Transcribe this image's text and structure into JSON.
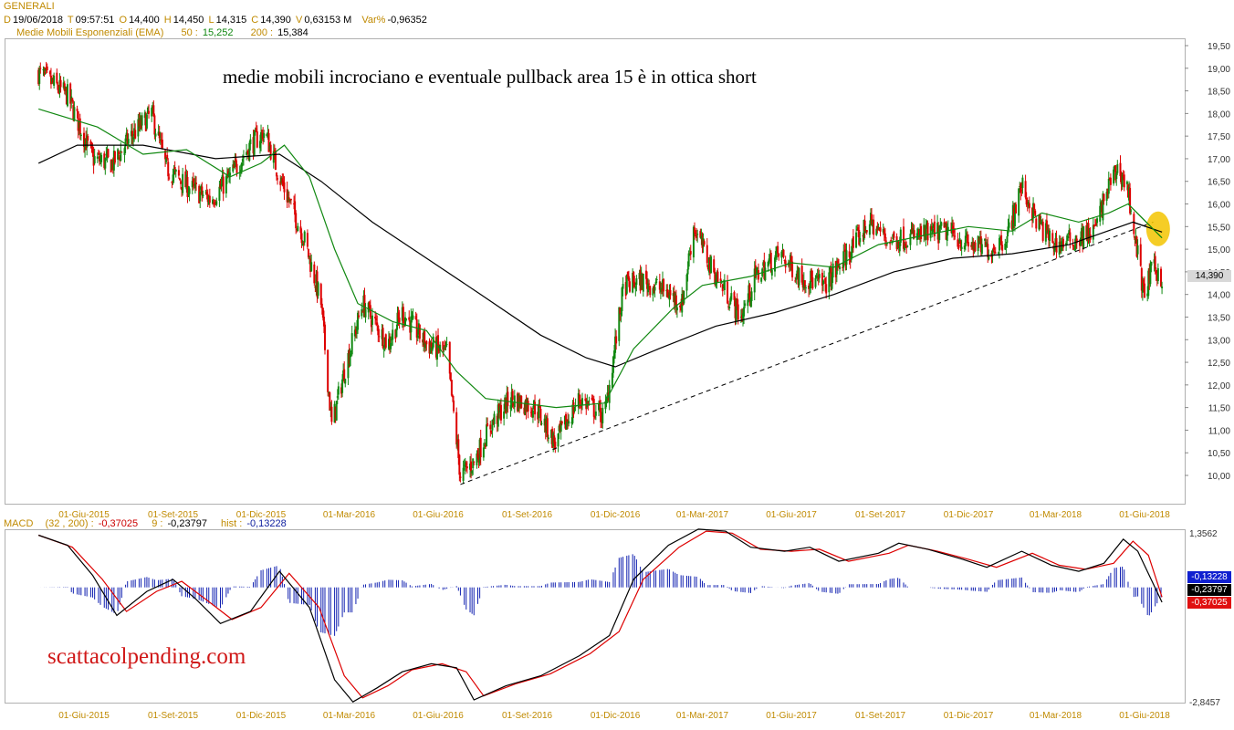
{
  "header": {
    "symbol": "GENERALI",
    "date_label": "D",
    "date": "19/06/2018",
    "time_label": "T",
    "time": "09:57:51",
    "open_label": "O",
    "open": "14,400",
    "high_label": "H",
    "high": "14,450",
    "low_label": "L",
    "low": "14,315",
    "close_label": "C",
    "close": "14,390",
    "volume_label": "V",
    "volume": "0,63153 M",
    "var_label": "Var%",
    "var": "-0,96352",
    "ema_label": "Medie Mobili Esponenziali (EMA)",
    "ema50_label": "50 :",
    "ema50": "15,252",
    "ema200_label": "200 :",
    "ema200": "15,384"
  },
  "annotation": "medie mobili incrociano e eventuale pullback area 15 è in ottica short",
  "watermark": "scattacolpending.com",
  "last_price_box": "14,390",
  "macd_header": {
    "label": "MACD",
    "params": "(32 , 200) :",
    "macd": "-0,37025",
    "signal_label": "9 :",
    "signal": "-0,23797",
    "hist_label": "hist :",
    "hist": "-0,13228"
  },
  "macd_boxes": {
    "hist": "-0,13228",
    "signal": "-0,23797",
    "macd": "-0,37025"
  },
  "colors": {
    "up": "#118811",
    "down": "#dd0000",
    "ema50": "#118811",
    "ema200": "#000000",
    "macd_hist": "#1020b0",
    "macd_line": "#000000",
    "signal_line": "#dd0000",
    "highlight": "#f3c400",
    "axis_date": "#c08a00"
  },
  "chart_data": [
    {
      "type": "candlestick",
      "title": "GENERALI",
      "x": [
        "01-Giu-2015",
        "01-Set-2015",
        "01-Dic-2015",
        "01-Mar-2016",
        "01-Giu-2016",
        "01-Set-2016",
        "01-Dic-2016",
        "01-Mar-2017",
        "01-Giu-2017",
        "01-Set-2017",
        "01-Dic-2017",
        "01-Mar-2018",
        "01-Giu-2018"
      ],
      "y_ticks": [
        "19,50",
        "19,00",
        "18,50",
        "18,00",
        "17,50",
        "17,00",
        "16,50",
        "16,00",
        "15,50",
        "15,00",
        "14,50",
        "14,00",
        "13,50",
        "13,00",
        "12,50",
        "12,00",
        "11,50",
        "11,00",
        "10,50",
        "10,00"
      ],
      "ylim": [
        9.5,
        19.75
      ],
      "price_path": [
        [
          "2015-04-15",
          18.9
        ],
        [
          "2015-05-15",
          18.4
        ],
        [
          "2015-06-10",
          17.0
        ],
        [
          "2015-07-01",
          16.9
        ],
        [
          "2015-07-20",
          17.5
        ],
        [
          "2015-08-10",
          18.0
        ],
        [
          "2015-08-25",
          16.8
        ],
        [
          "2015-09-15",
          16.4
        ],
        [
          "2015-10-10",
          16.1
        ],
        [
          "2015-10-30",
          16.6
        ],
        [
          "2015-11-20",
          17.3
        ],
        [
          "2015-12-05",
          17.6
        ],
        [
          "2015-12-20",
          16.6
        ],
        [
          "2016-01-15",
          15.2
        ],
        [
          "2016-02-01",
          13.8
        ],
        [
          "2016-02-12",
          11.1
        ],
        [
          "2016-02-25",
          12.3
        ],
        [
          "2016-03-15",
          13.8
        ],
        [
          "2016-04-10",
          12.9
        ],
        [
          "2016-04-25",
          13.6
        ],
        [
          "2016-05-20",
          12.9
        ],
        [
          "2016-06-10",
          12.7
        ],
        [
          "2016-06-24",
          10.0
        ],
        [
          "2016-07-08",
          10.3
        ],
        [
          "2016-07-25",
          11.1
        ],
        [
          "2016-08-15",
          11.7
        ],
        [
          "2016-09-10",
          11.5
        ],
        [
          "2016-09-30",
          10.7
        ],
        [
          "2016-10-25",
          11.7
        ],
        [
          "2016-11-20",
          11.3
        ],
        [
          "2016-12-10",
          14.2
        ],
        [
          "2016-12-30",
          14.3
        ],
        [
          "2017-01-20",
          14.1
        ],
        [
          "2017-02-08",
          13.8
        ],
        [
          "2017-02-20",
          15.5
        ],
        [
          "2017-03-10",
          14.6
        ],
        [
          "2017-04-10",
          13.5
        ],
        [
          "2017-04-25",
          14.4
        ],
        [
          "2017-05-20",
          14.9
        ],
        [
          "2017-06-10",
          14.4
        ],
        [
          "2017-07-05",
          14.2
        ],
        [
          "2017-07-30",
          14.9
        ],
        [
          "2017-08-20",
          15.6
        ],
        [
          "2017-09-10",
          15.2
        ],
        [
          "2017-10-10",
          15.3
        ],
        [
          "2017-11-10",
          15.4
        ],
        [
          "2017-12-01",
          15.1
        ],
        [
          "2017-12-25",
          15.0
        ],
        [
          "2018-01-10",
          15.3
        ],
        [
          "2018-01-25",
          16.4
        ],
        [
          "2018-02-10",
          15.6
        ],
        [
          "2018-02-28",
          15.1
        ],
        [
          "2018-03-20",
          15.2
        ],
        [
          "2018-04-10",
          15.4
        ],
        [
          "2018-04-25",
          16.4
        ],
        [
          "2018-05-05",
          16.8
        ],
        [
          "2018-05-15",
          16.3
        ],
        [
          "2018-05-31",
          14.0
        ],
        [
          "2018-06-10",
          14.6
        ],
        [
          "2018-06-19",
          14.39
        ]
      ],
      "ema50_path": [
        [
          "2015-04-15",
          18.1
        ],
        [
          "2015-06-15",
          17.7
        ],
        [
          "2015-08-01",
          17.1
        ],
        [
          "2015-09-15",
          17.2
        ],
        [
          "2015-10-30",
          16.6
        ],
        [
          "2015-12-01",
          16.9
        ],
        [
          "2015-12-25",
          17.3
        ],
        [
          "2016-01-20",
          16.6
        ],
        [
          "2016-02-15",
          15.0
        ],
        [
          "2016-03-10",
          13.8
        ],
        [
          "2016-04-15",
          13.4
        ],
        [
          "2016-05-20",
          13.2
        ],
        [
          "2016-06-20",
          12.3
        ],
        [
          "2016-07-20",
          11.7
        ],
        [
          "2016-08-25",
          11.6
        ],
        [
          "2016-10-01",
          11.5
        ],
        [
          "2016-11-20",
          11.6
        ],
        [
          "2016-12-20",
          12.8
        ],
        [
          "2017-01-30",
          13.7
        ],
        [
          "2017-03-01",
          14.2
        ],
        [
          "2017-04-20",
          14.4
        ],
        [
          "2017-06-01",
          14.7
        ],
        [
          "2017-07-15",
          14.6
        ],
        [
          "2017-08-30",
          15.1
        ],
        [
          "2017-10-15",
          15.3
        ],
        [
          "2017-12-01",
          15.5
        ],
        [
          "2018-01-15",
          15.4
        ],
        [
          "2018-02-15",
          15.8
        ],
        [
          "2018-03-25",
          15.6
        ],
        [
          "2018-04-25",
          15.8
        ],
        [
          "2018-05-15",
          16.0
        ],
        [
          "2018-06-19",
          15.25
        ]
      ],
      "ema200_path": [
        [
          "2015-04-15",
          16.9
        ],
        [
          "2015-05-25",
          17.3
        ],
        [
          "2015-08-01",
          17.3
        ],
        [
          "2015-10-15",
          17.0
        ],
        [
          "2015-12-20",
          17.1
        ],
        [
          "2016-02-01",
          16.5
        ],
        [
          "2016-03-25",
          15.6
        ],
        [
          "2016-05-20",
          14.8
        ],
        [
          "2016-07-15",
          14.0
        ],
        [
          "2016-09-15",
          13.1
        ],
        [
          "2016-11-01",
          12.6
        ],
        [
          "2016-12-01",
          12.4
        ],
        [
          "2017-01-15",
          12.8
        ],
        [
          "2017-03-15",
          13.3
        ],
        [
          "2017-05-15",
          13.6
        ],
        [
          "2017-07-15",
          14.0
        ],
        [
          "2017-09-15",
          14.5
        ],
        [
          "2017-11-15",
          14.8
        ],
        [
          "2018-01-15",
          14.9
        ],
        [
          "2018-03-15",
          15.1
        ],
        [
          "2018-05-20",
          15.6
        ],
        [
          "2018-06-19",
          15.38
        ]
      ],
      "trendline": [
        [
          "2016-06-24",
          9.8
        ],
        [
          "2018-06-10",
          15.6
        ]
      ],
      "highlight_circle": [
        "2018-06-15",
        15.45
      ]
    },
    {
      "type": "line",
      "title": "MACD (32 , 200)",
      "y_ticks": [
        "1,3562",
        "-2,8457"
      ],
      "ylim": [
        -2.8457,
        1.3562
      ],
      "series": [
        {
          "name": "MACD",
          "values": [
            [
              "2015-04-15",
              1.3
            ],
            [
              "2015-05-15",
              1.05
            ],
            [
              "2015-06-10",
              0.3
            ],
            [
              "2015-07-05",
              -0.7
            ],
            [
              "2015-08-05",
              -0.1
            ],
            [
              "2015-09-01",
              0.2
            ],
            [
              "2015-09-25",
              -0.3
            ],
            [
              "2015-10-20",
              -0.9
            ],
            [
              "2015-11-20",
              -0.6
            ],
            [
              "2015-12-20",
              0.4
            ],
            [
              "2016-01-20",
              -0.5
            ],
            [
              "2016-02-15",
              -2.3
            ],
            [
              "2016-03-05",
              -2.85
            ],
            [
              "2016-03-30",
              -2.5
            ],
            [
              "2016-04-25",
              -2.1
            ],
            [
              "2016-05-25",
              -1.9
            ],
            [
              "2016-06-20",
              -2.0
            ],
            [
              "2016-07-08",
              -2.8
            ],
            [
              "2016-08-10",
              -2.45
            ],
            [
              "2016-09-15",
              -2.2
            ],
            [
              "2016-10-25",
              -1.7
            ],
            [
              "2016-11-25",
              -1.2
            ],
            [
              "2016-12-20",
              0.2
            ],
            [
              "2017-01-25",
              1.05
            ],
            [
              "2017-02-25",
              1.45
            ],
            [
              "2017-03-25",
              1.4
            ],
            [
              "2017-04-20",
              1.0
            ],
            [
              "2017-05-25",
              0.9
            ],
            [
              "2017-06-20",
              1.0
            ],
            [
              "2017-07-20",
              0.65
            ],
            [
              "2017-08-30",
              0.85
            ],
            [
              "2017-09-20",
              1.1
            ],
            [
              "2017-10-20",
              0.95
            ],
            [
              "2017-11-25",
              0.7
            ],
            [
              "2017-12-20",
              0.5
            ],
            [
              "2018-01-25",
              0.9
            ],
            [
              "2018-02-25",
              0.55
            ],
            [
              "2018-03-25",
              0.4
            ],
            [
              "2018-04-20",
              0.6
            ],
            [
              "2018-05-10",
              1.2
            ],
            [
              "2018-05-25",
              0.9
            ],
            [
              "2018-06-19",
              -0.37
            ]
          ]
        },
        {
          "name": "signal",
          "values": [
            [
              "2015-04-15",
              1.3
            ],
            [
              "2015-05-20",
              1.0
            ],
            [
              "2015-06-20",
              0.2
            ],
            [
              "2015-07-15",
              -0.6
            ],
            [
              "2015-08-15",
              -0.1
            ],
            [
              "2015-09-10",
              0.15
            ],
            [
              "2015-10-05",
              -0.3
            ],
            [
              "2015-11-01",
              -0.8
            ],
            [
              "2015-12-01",
              -0.5
            ],
            [
              "2015-12-30",
              0.35
            ],
            [
              "2016-01-30",
              -0.5
            ],
            [
              "2016-02-25",
              -2.2
            ],
            [
              "2016-03-15",
              -2.75
            ],
            [
              "2016-04-10",
              -2.45
            ],
            [
              "2016-05-05",
              -2.05
            ],
            [
              "2016-06-05",
              -1.9
            ],
            [
              "2016-06-30",
              -2.1
            ],
            [
              "2016-07-18",
              -2.7
            ],
            [
              "2016-08-20",
              -2.4
            ],
            [
              "2016-09-25",
              -2.15
            ],
            [
              "2016-11-05",
              -1.65
            ],
            [
              "2016-12-05",
              -1.1
            ],
            [
              "2016-12-30",
              0.2
            ],
            [
              "2017-02-05",
              1.0
            ],
            [
              "2017-03-05",
              1.4
            ],
            [
              "2017-04-01",
              1.35
            ],
            [
              "2017-04-30",
              0.95
            ],
            [
              "2017-06-01",
              0.9
            ],
            [
              "2017-06-30",
              0.95
            ],
            [
              "2017-07-30",
              0.65
            ],
            [
              "2017-09-10",
              0.85
            ],
            [
              "2017-09-30",
              1.05
            ],
            [
              "2017-10-30",
              0.9
            ],
            [
              "2017-12-01",
              0.7
            ],
            [
              "2017-12-30",
              0.5
            ],
            [
              "2018-02-05",
              0.85
            ],
            [
              "2018-03-05",
              0.55
            ],
            [
              "2018-04-01",
              0.45
            ],
            [
              "2018-04-30",
              0.6
            ],
            [
              "2018-05-20",
              1.15
            ],
            [
              "2018-06-05",
              0.8
            ],
            [
              "2018-06-19",
              -0.24
            ]
          ]
        }
      ]
    }
  ]
}
